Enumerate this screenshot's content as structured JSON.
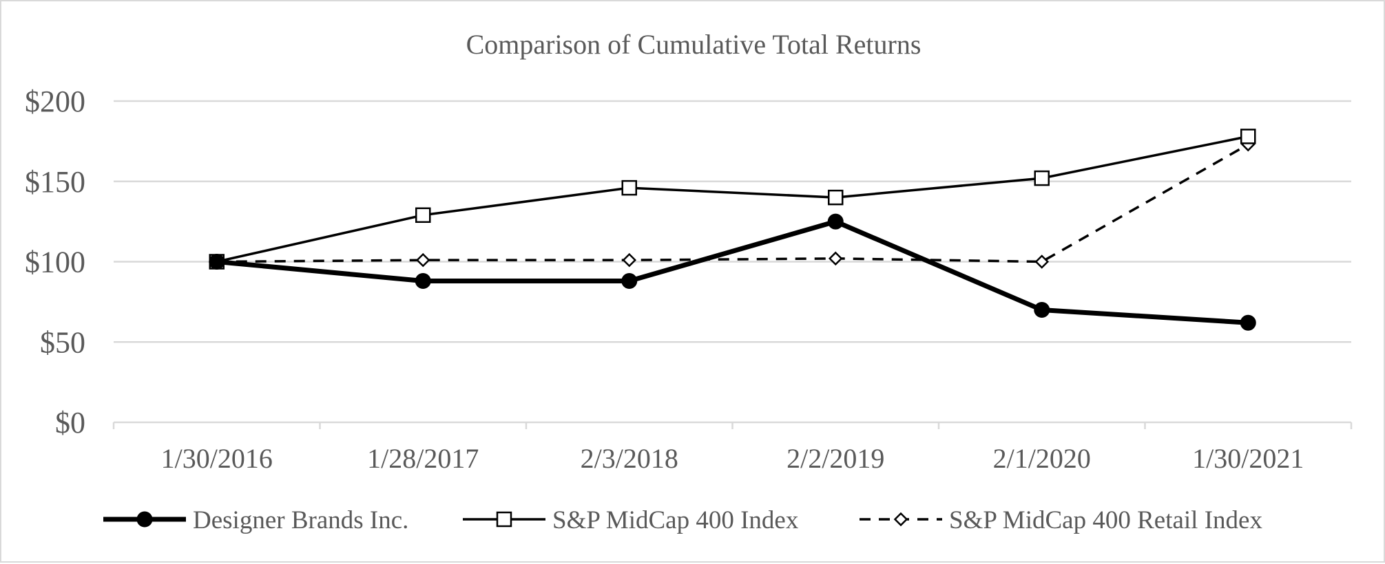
{
  "chart_data": {
    "type": "line",
    "title": "Comparison of Cumulative Total Returns",
    "xlabel": "",
    "ylabel": "",
    "categories": [
      "1/30/2016",
      "1/28/2017",
      "2/3/2018",
      "2/2/2019",
      "2/1/2020",
      "1/30/2021"
    ],
    "ylim": [
      0,
      200
    ],
    "yticks": [
      0,
      50,
      100,
      150,
      200
    ],
    "ytick_labels": [
      "$0",
      "$50",
      "$100",
      "$150",
      "$200"
    ],
    "grid": true,
    "legend_position": "bottom",
    "series": [
      {
        "name": "Designer Brands Inc.",
        "values": [
          100,
          88,
          88,
          125,
          70,
          62
        ],
        "color": "#000000",
        "line_style": "solid-thick",
        "marker": "filled-circle"
      },
      {
        "name": "S&P MidCap 400 Index",
        "values": [
          100,
          129,
          146,
          140,
          152,
          178
        ],
        "color": "#000000",
        "line_style": "solid",
        "marker": "open-square"
      },
      {
        "name": "S&P MidCap 400 Retail Index",
        "values": [
          100,
          101,
          101,
          102,
          100,
          173
        ],
        "color": "#000000",
        "line_style": "dashed",
        "marker": "open-diamond"
      }
    ]
  }
}
